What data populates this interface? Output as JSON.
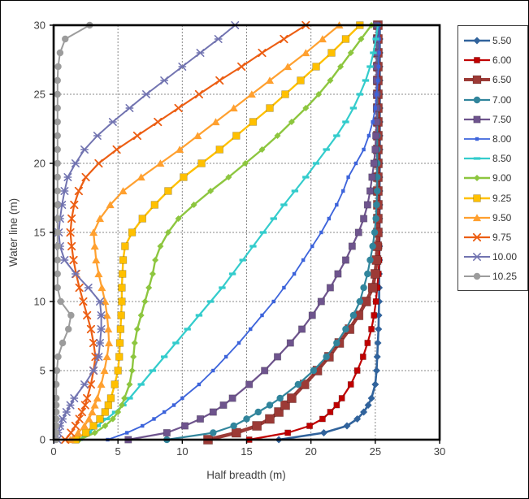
{
  "chart_data": {
    "type": "line",
    "title": "",
    "xlabel": "Half breadth (m)",
    "ylabel": "Water line (m)",
    "xlim": [
      0,
      30
    ],
    "ylim": [
      0,
      30
    ],
    "xticks": [
      0,
      5,
      10,
      15,
      20,
      25,
      30
    ],
    "yticks": [
      0,
      5,
      10,
      15,
      20,
      25,
      30
    ],
    "grid": true,
    "grid_style": "dotted-gray",
    "legend_position": "right-outside-top",
    "x_axis_is": "half breadth (m) per series",
    "y_axis_is": "water line height (m), shared",
    "waterline_m": [
      0,
      0.5,
      1,
      1.5,
      2,
      2.5,
      3,
      4,
      5,
      6,
      7,
      8,
      9,
      10,
      11,
      12,
      13,
      14,
      15,
      16,
      17,
      18,
      19,
      20,
      21,
      22,
      23,
      24,
      25,
      26,
      27,
      28,
      29,
      30
    ],
    "series": [
      {
        "name": "5.50",
        "color": "#31639C",
        "marker": "diamond",
        "marker_size": 4.5,
        "line_width": 2.6,
        "half_breadth_m": [
          17.5,
          21.0,
          22.8,
          23.6,
          24.1,
          24.45,
          24.7,
          25.0,
          25.1,
          25.15,
          25.2,
          25.25,
          25.27,
          25.3,
          25.3,
          25.3,
          25.32,
          25.32,
          25.33,
          25.33,
          25.34,
          25.34,
          25.34,
          25.35,
          25.35,
          25.35,
          25.35,
          25.35,
          25.35,
          25.35,
          25.35,
          25.35,
          25.35,
          25.35
        ]
      },
      {
        "name": "6.00",
        "color": "#C00000",
        "marker": "square",
        "marker_size": 3.6,
        "line_width": 2.2,
        "half_breadth_m": [
          15.2,
          18.2,
          19.9,
          20.9,
          21.5,
          22.0,
          22.4,
          23.1,
          23.6,
          24.05,
          24.4,
          24.7,
          24.9,
          25.05,
          25.15,
          25.25,
          25.3,
          25.3,
          25.3,
          25.3,
          25.3,
          25.3,
          25.3,
          25.3,
          25.3,
          25.3,
          25.3,
          25.3,
          25.3,
          25.3,
          25.3,
          25.3,
          25.3,
          25.3
        ]
      },
      {
        "name": "6.50",
        "color": "#9C3A36",
        "marker": "square",
        "marker_size": 5.6,
        "line_width": 4.4,
        "half_breadth_m": [
          12.0,
          14.2,
          15.8,
          16.8,
          17.5,
          18.0,
          18.5,
          19.5,
          20.5,
          21.4,
          22.2,
          23.0,
          23.7,
          24.3,
          24.8,
          25.0,
          25.1,
          25.15,
          25.2,
          25.2,
          25.2,
          25.2,
          25.2,
          25.2,
          25.2,
          25.2,
          25.2,
          25.2,
          25.2,
          25.2,
          25.2,
          25.2,
          25.2,
          25.2
        ]
      },
      {
        "name": "7.00",
        "color": "#31859C",
        "marker": "circle",
        "marker_size": 4.2,
        "line_width": 2.2,
        "half_breadth_m": [
          8.8,
          12.4,
          14.0,
          15.0,
          15.9,
          16.8,
          17.6,
          19.0,
          20.2,
          21.2,
          22.0,
          22.7,
          23.3,
          23.8,
          24.1,
          24.4,
          24.6,
          24.8,
          24.95,
          25.05,
          25.1,
          25.15,
          25.15,
          25.15,
          25.15,
          25.15,
          25.15,
          25.15,
          25.15,
          25.15,
          25.15,
          25.15,
          25.15,
          25.15
        ]
      },
      {
        "name": "7.50",
        "color": "#6E548D",
        "marker": "square",
        "marker_size": 4.2,
        "line_width": 2.2,
        "half_breadth_m": [
          5.8,
          8.8,
          10.2,
          11.4,
          12.4,
          13.2,
          13.9,
          15.2,
          16.4,
          17.4,
          18.4,
          19.3,
          20.1,
          20.8,
          21.5,
          22.1,
          22.7,
          23.2,
          23.7,
          24.1,
          24.4,
          24.6,
          24.75,
          24.9,
          25.0,
          25.05,
          25.1,
          25.1,
          25.1,
          25.1,
          25.1,
          25.1,
          25.1,
          25.1
        ]
      },
      {
        "name": "8.00",
        "color": "#3D64DB",
        "marker": "dot",
        "marker_size": 2.2,
        "line_width": 1.8,
        "half_breadth_m": [
          4.2,
          5.7,
          6.9,
          7.8,
          8.6,
          9.35,
          10.0,
          11.3,
          12.4,
          13.4,
          14.4,
          15.3,
          16.2,
          17.1,
          17.9,
          18.7,
          19.4,
          20.1,
          20.8,
          21.4,
          22.0,
          22.5,
          22.9,
          23.5,
          24.1,
          24.5,
          24.8,
          25.0,
          25.1,
          25.2,
          25.25,
          25.3,
          25.3,
          25.3
        ]
      },
      {
        "name": "8.50",
        "color": "#33CCCC",
        "marker": "dash",
        "marker_size": 4.2,
        "line_width": 2.2,
        "half_breadth_m": [
          2.0,
          2.7,
          3.4,
          4.1,
          4.8,
          5.4,
          5.9,
          6.8,
          7.7,
          8.6,
          9.5,
          10.4,
          11.3,
          12.2,
          13.1,
          13.9,
          14.7,
          15.5,
          16.3,
          17.1,
          17.9,
          18.75,
          19.6,
          20.4,
          21.2,
          22.0,
          22.7,
          23.3,
          23.8,
          24.25,
          24.6,
          24.85,
          25.05,
          25.2
        ]
      },
      {
        "name": "9.00",
        "color": "#8DC63F",
        "marker": "diamond",
        "marker_size": 4.0,
        "line_width": 2.4,
        "half_breadth_m": [
          2.0,
          3.2,
          4.0,
          4.6,
          5.0,
          5.3,
          5.5,
          5.9,
          6.1,
          6.2,
          6.3,
          6.5,
          6.8,
          7.1,
          7.4,
          7.7,
          7.9,
          8.3,
          8.9,
          9.7,
          10.9,
          12.2,
          13.6,
          14.9,
          16.2,
          17.4,
          18.5,
          19.6,
          20.6,
          21.5,
          22.3,
          23.1,
          23.9,
          24.7
        ]
      },
      {
        "name": "9.25",
        "color": "#FFC000",
        "marker": "square",
        "marker_size": 4.4,
        "line_width": 2.4,
        "half_breadth_m": [
          1.7,
          2.5,
          3.1,
          3.6,
          4.0,
          4.25,
          4.45,
          4.75,
          5.0,
          5.1,
          5.15,
          5.2,
          5.25,
          5.3,
          5.3,
          5.35,
          5.4,
          5.55,
          6.1,
          6.9,
          7.85,
          8.9,
          10.1,
          11.5,
          12.9,
          14.2,
          15.5,
          16.8,
          18.0,
          19.2,
          20.4,
          21.6,
          22.7,
          23.8
        ]
      },
      {
        "name": "9.50",
        "color": "#FFA02F",
        "marker": "triangle",
        "marker_size": 4.8,
        "line_width": 2.2,
        "half_breadth_m": [
          1.3,
          1.9,
          2.4,
          2.75,
          3.0,
          3.2,
          3.4,
          3.7,
          3.95,
          4.15,
          4.3,
          4.25,
          4.15,
          4.0,
          3.75,
          3.5,
          3.3,
          3.2,
          3.1,
          3.6,
          4.4,
          5.4,
          6.8,
          8.3,
          9.8,
          11.2,
          12.6,
          14.0,
          15.4,
          16.8,
          18.2,
          19.6,
          20.9,
          22.2
        ]
      },
      {
        "name": "9.75",
        "color": "#EC5E13",
        "marker": "x",
        "marker_size": 4.2,
        "line_width": 2.2,
        "half_breadth_m": [
          0.9,
          1.35,
          1.7,
          2.0,
          2.2,
          2.45,
          2.6,
          2.9,
          3.1,
          3.25,
          3.1,
          2.9,
          2.6,
          2.3,
          2.0,
          1.75,
          1.55,
          1.4,
          1.3,
          1.4,
          1.6,
          1.95,
          2.5,
          3.5,
          4.9,
          6.5,
          8.1,
          9.7,
          11.3,
          12.9,
          14.6,
          16.2,
          17.9,
          19.6
        ]
      },
      {
        "name": "10.00",
        "color": "#7173B0",
        "marker": "star",
        "marker_size": 4.2,
        "line_width": 2.0,
        "half_breadth_m": [
          0.3,
          0.35,
          0.5,
          0.7,
          1.0,
          1.3,
          1.6,
          2.4,
          3.1,
          3.5,
          3.6,
          3.7,
          3.7,
          3.6,
          2.7,
          1.7,
          0.85,
          0.5,
          0.4,
          0.5,
          0.65,
          0.85,
          1.1,
          1.7,
          2.4,
          3.4,
          4.6,
          5.9,
          7.2,
          8.6,
          10.0,
          11.4,
          12.8,
          14.1
        ]
      },
      {
        "name": "10.25",
        "color": "#9C9C9C",
        "marker": "circle",
        "marker_size": 4.2,
        "line_width": 2.0,
        "half_breadth_m": [
          0.2,
          0.2,
          0.2,
          0.2,
          0.2,
          0.2,
          0.2,
          0.2,
          0.25,
          0.35,
          0.7,
          1.15,
          1.35,
          0.55,
          0.3,
          0.3,
          0.3,
          0.3,
          0.3,
          0.3,
          0.3,
          0.3,
          0.3,
          0.3,
          0.3,
          0.3,
          0.3,
          0.3,
          0.3,
          0.3,
          0.35,
          0.5,
          0.9,
          2.8
        ]
      }
    ]
  },
  "colors": {
    "plot_frame": "#000000",
    "gridline": "#888888",
    "tick_label": "#404040",
    "background": "#FFFFFF"
  }
}
